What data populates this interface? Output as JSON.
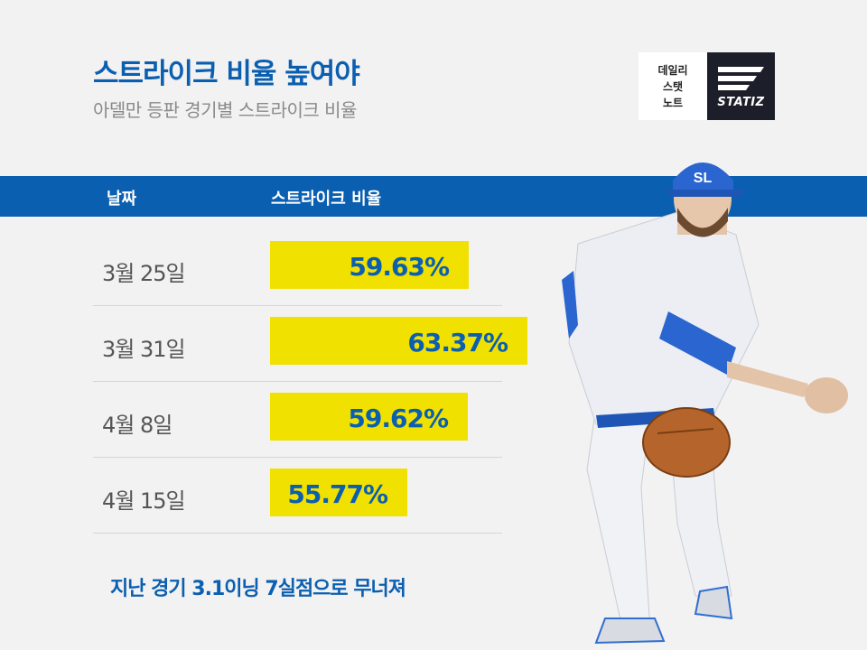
{
  "title": "스트라이크 비율 높여야",
  "subtitle": "아델만 등판 경기별 스트라이크 비율",
  "logos": {
    "note_lines": [
      "데일리",
      "스탯",
      "노트"
    ],
    "statiz": "STATIZ",
    "cap_letters": "SL"
  },
  "table": {
    "col_date": "날짜",
    "col_rate": "스트라이크 비율"
  },
  "chart_data": {
    "type": "bar",
    "orientation": "horizontal",
    "title": "스트라이크 비율 높여야",
    "subtitle": "아델만 등판 경기별 스트라이크 비율",
    "categories": [
      "3월 25일",
      "3월 31일",
      "4월 8일",
      "4월 15일"
    ],
    "values": [
      59.63,
      63.37,
      59.62,
      55.77
    ],
    "labels": [
      "59.63%",
      "63.37%",
      "59.62%",
      "55.77%"
    ],
    "unit": "%",
    "bar_color": "#f1e100",
    "label_color": "#0b5fb0"
  },
  "caption": "지난 경기 3.1이닝 7실점으로 무너져",
  "colors": {
    "accent": "#0b5fb0",
    "bar": "#f1e100",
    "background": "#f2f2f2"
  }
}
